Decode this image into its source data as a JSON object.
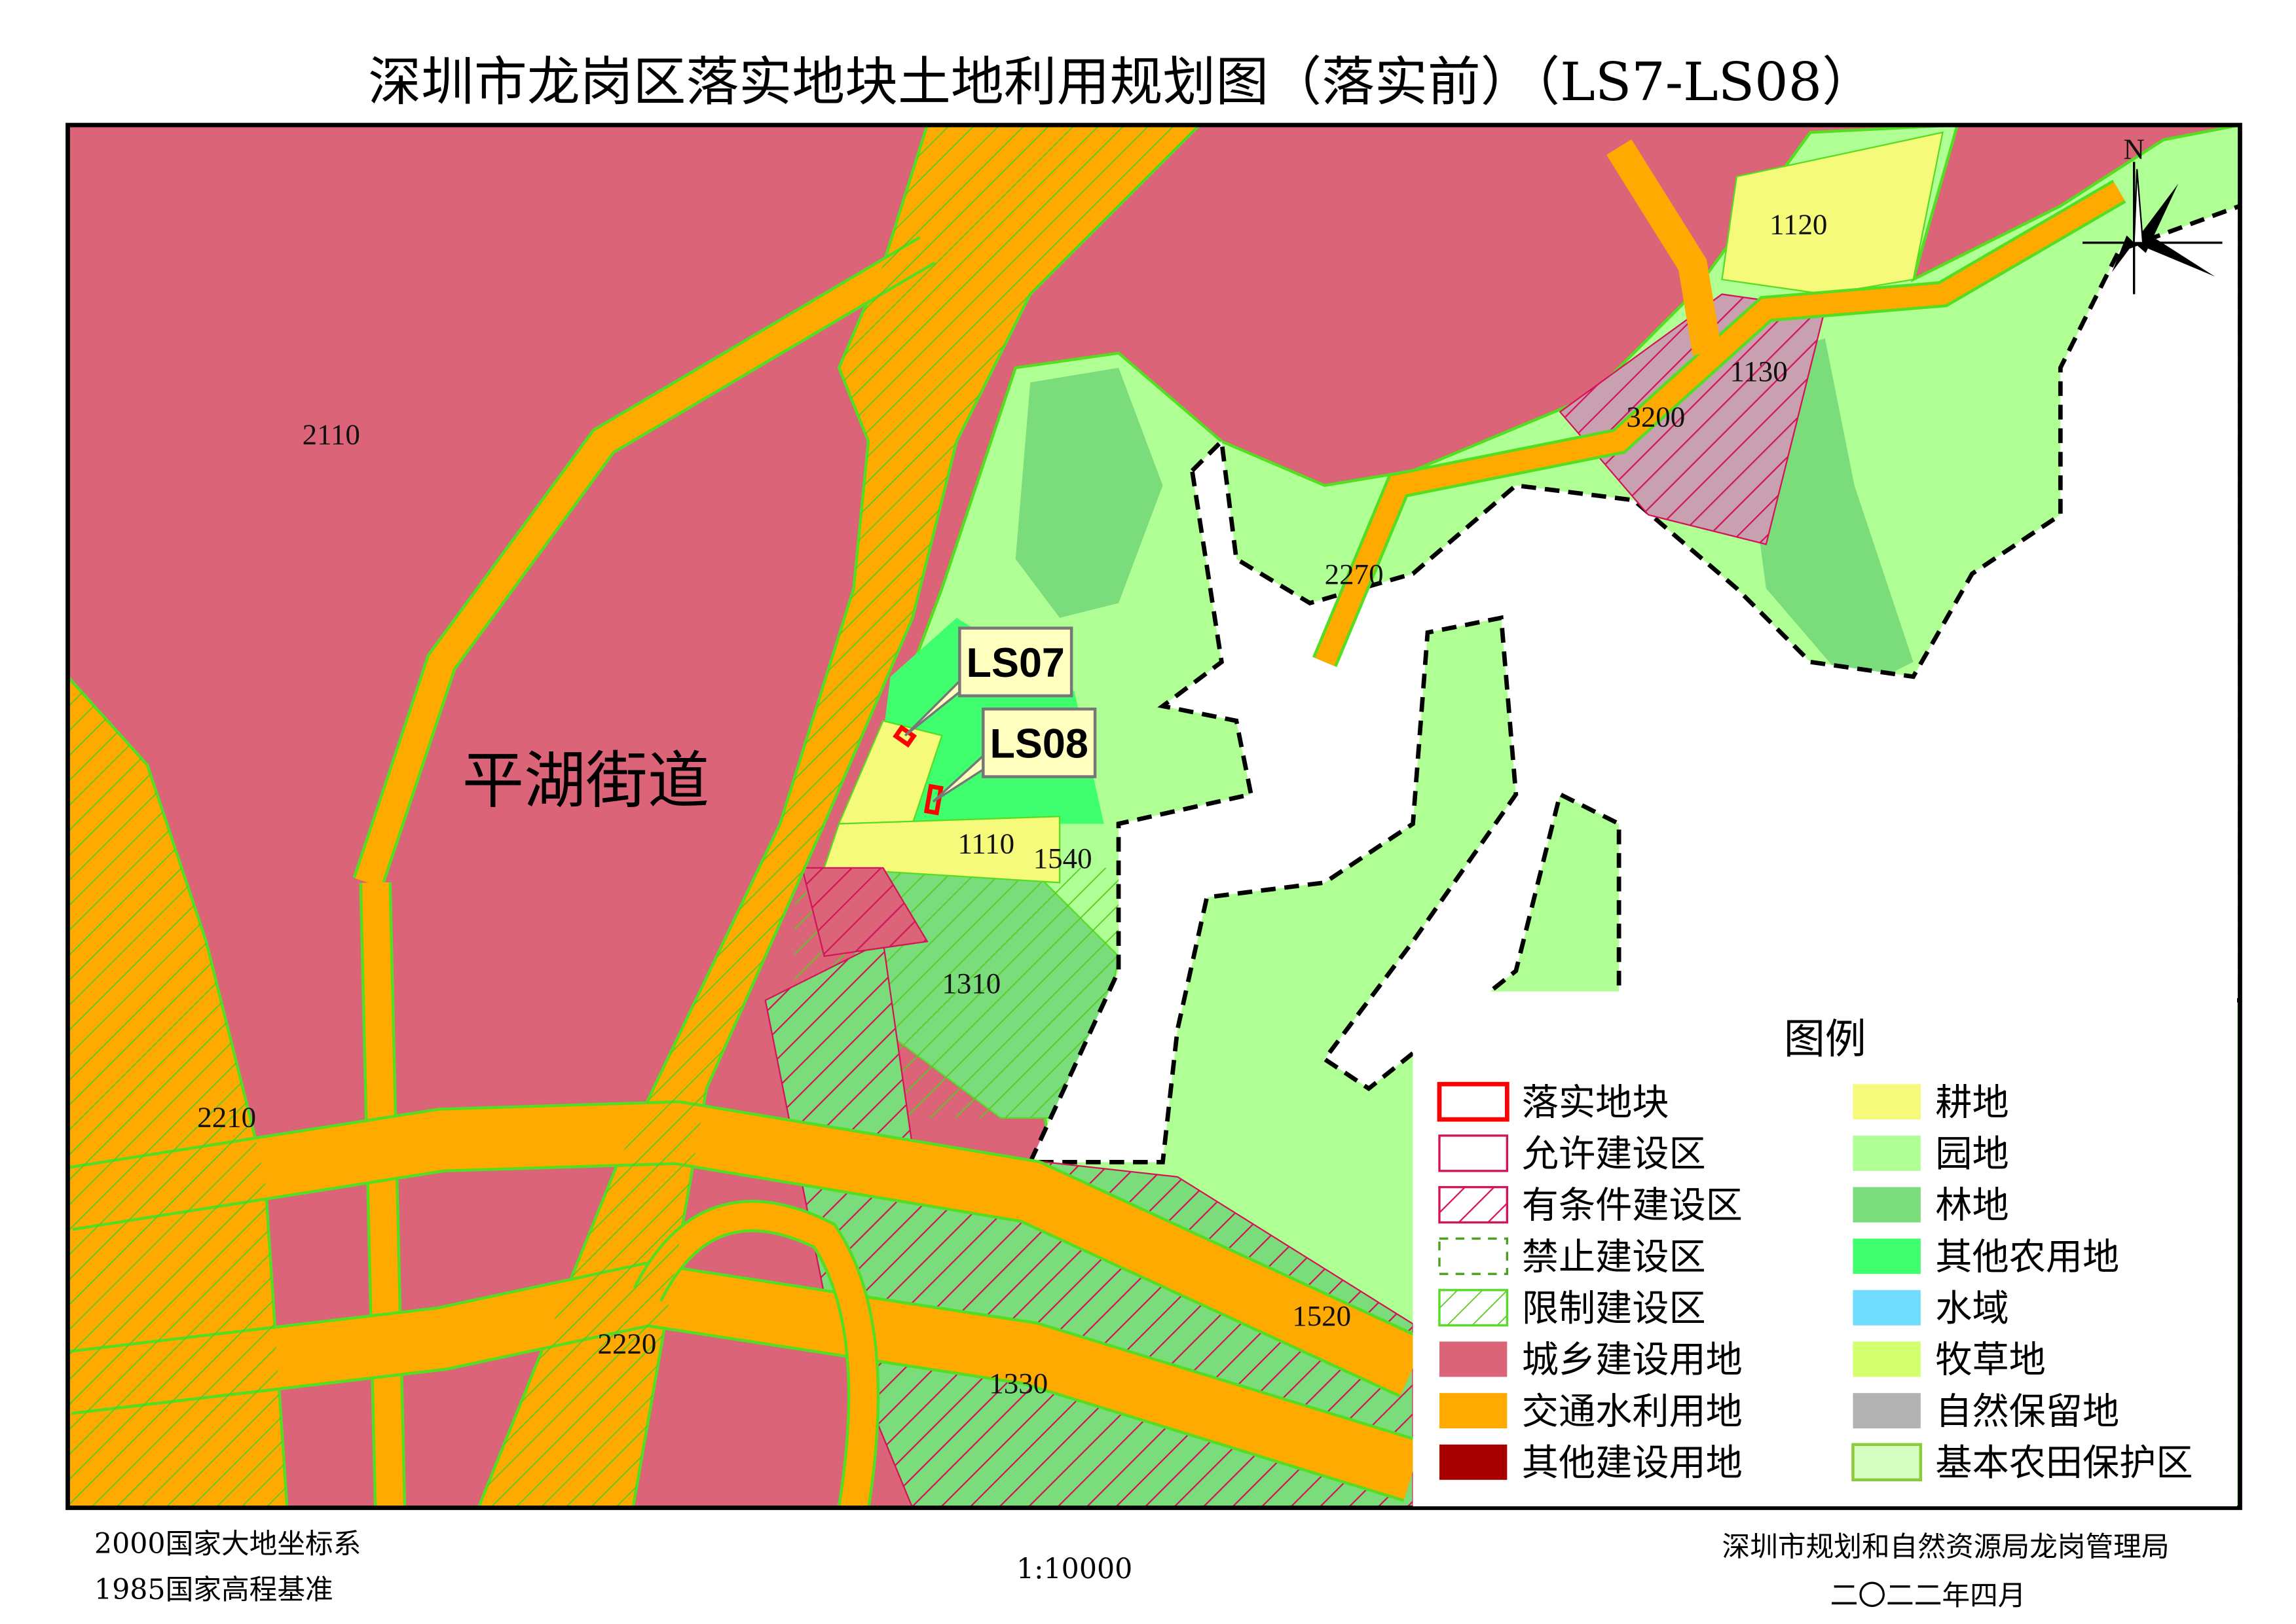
{
  "title": "深圳市龙岗区落实地块土地利用规划图（落实前）（LS7-LS08）",
  "map": {
    "district_label": "平湖街道",
    "parcel_codes": [
      "2110",
      "1120",
      "1130",
      "3200",
      "2270",
      "1110",
      "1540",
      "1310",
      "2210",
      "2220",
      "1330",
      "1520"
    ],
    "callouts": [
      {
        "label": "LS07"
      },
      {
        "label": "LS08"
      }
    ],
    "north_label": "N",
    "icons": [
      "north-arrow-icon"
    ]
  },
  "legend": {
    "title": "图例",
    "left": [
      {
        "label": "落实地块",
        "color": "#ff0000",
        "style": "outline-thick"
      },
      {
        "label": "允许建设区",
        "color": "#d4145a",
        "style": "outline"
      },
      {
        "label": "有条件建设区",
        "color": "#d4145a",
        "style": "hatch"
      },
      {
        "label": "禁止建设区",
        "color": "#4aa01e",
        "style": "dashed"
      },
      {
        "label": "限制建设区",
        "color": "#55dd22",
        "style": "hatch"
      },
      {
        "label": "城乡建设用地",
        "color": "#dc6478",
        "style": "fill"
      },
      {
        "label": "交通水利用地",
        "color": "#ffaa00",
        "style": "fill"
      },
      {
        "label": "其他建设用地",
        "color": "#a80000",
        "style": "fill"
      }
    ],
    "right": [
      {
        "label": "耕地",
        "color": "#f5fa7a",
        "style": "fill"
      },
      {
        "label": "园地",
        "color": "#b0ff94",
        "style": "fill"
      },
      {
        "label": "林地",
        "color": "#7adc7a",
        "style": "fill"
      },
      {
        "label": "其他农用地",
        "color": "#40ff6e",
        "style": "fill"
      },
      {
        "label": "水域",
        "color": "#70dcff",
        "style": "fill"
      },
      {
        "label": "牧草地",
        "color": "#d4ff6e",
        "style": "fill"
      },
      {
        "label": "自然保留地",
        "color": "#b2b2b2",
        "style": "fill"
      },
      {
        "label": "基本农田保护区",
        "color": "#d4ffc0",
        "style": "outline-fill"
      }
    ]
  },
  "footer": {
    "coord_system": "2000国家大地坐标系",
    "height_datum": "1985国家高程基准",
    "scale": "1:10000",
    "agency": "深圳市规划和自然资源局龙岗管理局",
    "date": "二〇二二年四月"
  }
}
